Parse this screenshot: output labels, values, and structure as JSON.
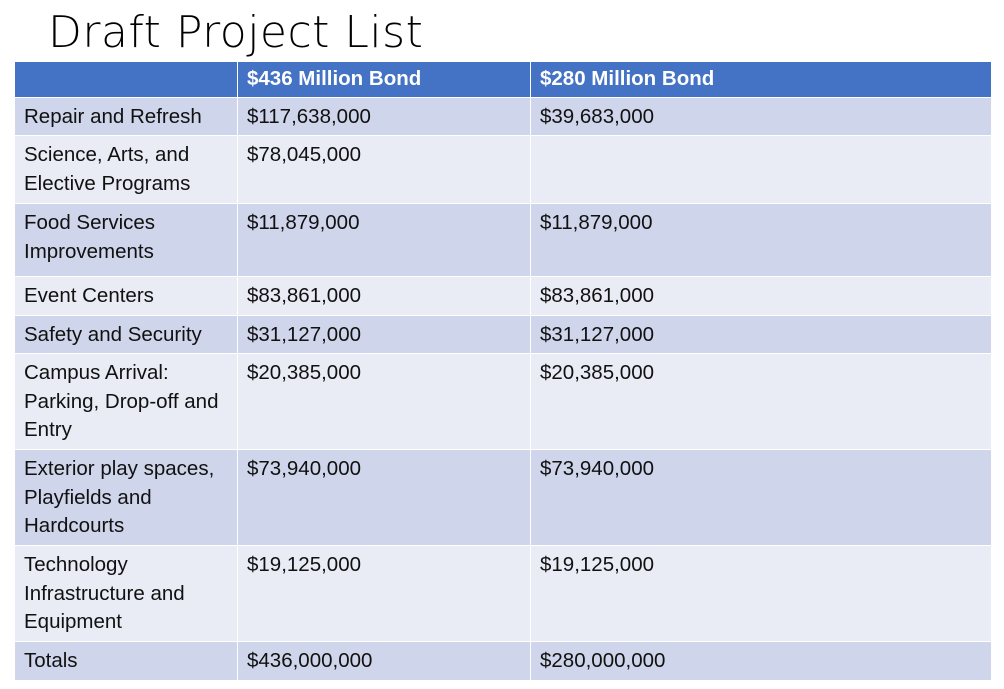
{
  "title": "Draft Project List",
  "colors": {
    "header_bg": "#4472c4",
    "row_dark": "#cfd5ea",
    "row_light": "#e9ebf5"
  },
  "table": {
    "headers": [
      "",
      "$436 Million Bond",
      "$280 Million Bond"
    ],
    "rows": [
      {
        "label": "Repair and Refresh",
        "bond436": "$117,638,000",
        "bond280": "$39,683,000"
      },
      {
        "label": "Science, Arts, and Elective Programs",
        "bond436": "$78,045,000",
        "bond280": ""
      },
      {
        "label": "Food Services Improvements",
        "bond436": "$11,879,000",
        "bond280": "$11,879,000"
      },
      {
        "label": "Event Centers",
        "bond436": "$83,861,000",
        "bond280": "$83,861,000"
      },
      {
        "label": "Safety and Security",
        "bond436": "$31,127,000",
        "bond280": "$31,127,000"
      },
      {
        "label": "Campus Arrival: Parking, Drop-off and Entry",
        "bond436": "$20,385,000",
        "bond280": "$20,385,000"
      },
      {
        "label": "Exterior play spaces, Playfields and Hardcourts",
        "bond436": "$73,940,000",
        "bond280": "$73,940,000"
      },
      {
        "label": "Technology Infrastructure and Equipment",
        "bond436": "$19,125,000",
        "bond280": "$19,125,000"
      },
      {
        "label": "Totals",
        "bond436": "$436,000,000",
        "bond280": "$280,000,000"
      }
    ]
  }
}
